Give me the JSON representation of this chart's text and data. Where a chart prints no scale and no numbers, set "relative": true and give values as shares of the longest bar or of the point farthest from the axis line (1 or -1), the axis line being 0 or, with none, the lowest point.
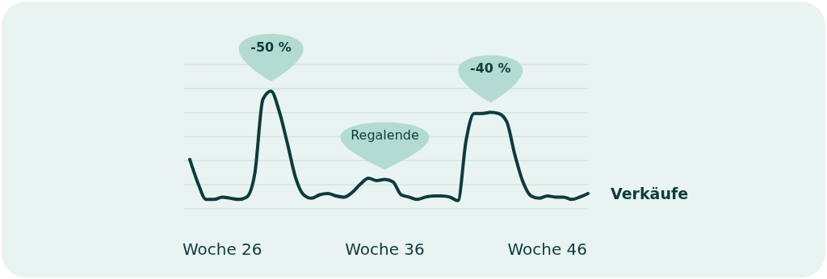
{
  "chart_data": {
    "type": "line",
    "relative": true,
    "grid": true,
    "tick_labels": "x",
    "categories": [
      null,
      null,
      null,
      null,
      "Woche 26",
      null,
      null,
      null,
      null,
      null,
      null,
      null,
      null,
      null,
      null,
      null,
      null,
      null,
      null,
      null,
      null,
      null,
      null,
      null,
      "Woche 36",
      null,
      null,
      null,
      null,
      null,
      null,
      null,
      null,
      null,
      null,
      null,
      null,
      null,
      null,
      null,
      null,
      null,
      null,
      null,
      "Woche 46",
      null,
      null,
      null,
      null,
      null
    ],
    "series": [
      {
        "name": "Verkäufe",
        "color": "#0d3b3d",
        "values": [
          0.42,
          0.22,
          0.08,
          0.08,
          0.1,
          0.09,
          0.08,
          0.1,
          0.3,
          0.93,
          1.0,
          0.83,
          0.56,
          0.27,
          0.12,
          0.09,
          0.12,
          0.13,
          0.11,
          0.1,
          0.14,
          0.21,
          0.26,
          0.24,
          0.25,
          0.23,
          0.12,
          0.1,
          0.08,
          0.1,
          0.11,
          0.11,
          0.1,
          0.07,
          0.58,
          0.81,
          0.81,
          0.82,
          0.81,
          0.74,
          0.46,
          0.23,
          0.11,
          0.09,
          0.11,
          0.1,
          0.1,
          0.08,
          0.1,
          0.13
        ]
      }
    ],
    "annotations": [
      {
        "text": "-50 %",
        "y": 1.0
      },
      {
        "text": "Regalende",
        "y": 0.25
      },
      {
        "text": "-40 %",
        "y": 0.82
      }
    ]
  }
}
